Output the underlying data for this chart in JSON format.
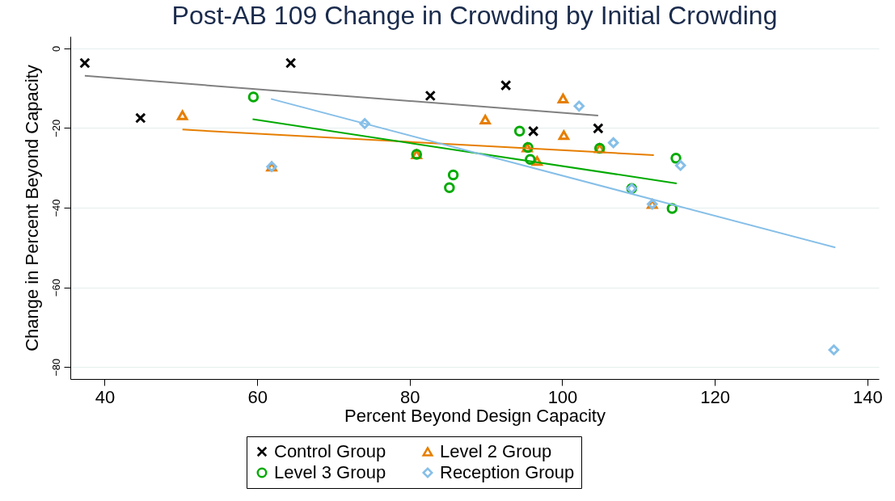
{
  "chart_data": {
    "type": "scatter",
    "title": "Post-AB 109 Change in Crowding by Initial Crowding",
    "xlabel": "Percent Beyond Design Capacity",
    "ylabel": "Change in Percent Beyond Capacity",
    "xlim": [
      35.5,
      141.5
    ],
    "xticks": [
      40,
      60,
      80,
      100,
      120,
      140
    ],
    "ylim": [
      -83,
      3
    ],
    "yticks": [
      0,
      -20,
      -40,
      -60,
      -80
    ],
    "grid": "y",
    "legend": "bottom",
    "series": [
      {
        "name": "Control Group",
        "type": "scatter",
        "marker": "cross",
        "color": "#000000",
        "x": [
          37.4,
          64.4,
          44.7,
          82.7,
          92.6,
          96.2,
          104.7
        ],
        "values": [
          -3.7,
          -3.7,
          -17.5,
          -11.9,
          -9.3,
          -20.8,
          -20.1
        ]
      },
      {
        "name": "Level 2 Group",
        "type": "scatter",
        "marker": "triangle",
        "color": "#e67e00",
        "x": [
          50.2,
          61.9,
          80.9,
          89.9,
          100.1,
          95.4,
          96.7,
          100.2,
          104.9,
          111.8
        ],
        "values": [
          -16.8,
          -29.7,
          -26.6,
          -17.9,
          -12.6,
          -24.9,
          -28.3,
          -21.8,
          -25.1,
          -39.1
        ]
      },
      {
        "name": "Level 3 Group",
        "type": "scatter",
        "marker": "circle",
        "color": "#00aa00",
        "x": [
          59.5,
          80.9,
          85.7,
          85.2,
          94.4,
          95.5,
          95.8,
          104.9,
          114.9,
          114.4,
          109.1
        ],
        "values": [
          -12.2,
          -26.6,
          -31.8,
          -35.0,
          -20.8,
          -24.9,
          -27.9,
          -25.1,
          -27.6,
          -40.2,
          -35.2
        ]
      },
      {
        "name": "Reception Group",
        "type": "scatter",
        "marker": "diamond",
        "color": "#86bfe8",
        "x": [
          61.9,
          74.1,
          102.2,
          106.7,
          115.5,
          109.1,
          111.8,
          135.6
        ],
        "values": [
          -29.7,
          -18.9,
          -14.5,
          -23.7,
          -29.4,
          -35.2,
          -39.1,
          -75.7
        ]
      },
      {
        "type": "line",
        "color": "#808080",
        "x": [
          37.4,
          104.7
        ],
        "values": [
          -6.9,
          -16.9
        ]
      },
      {
        "type": "line",
        "color": "#e67e00",
        "x": [
          50.2,
          112
        ],
        "values": [
          -20.4,
          -26.8
        ]
      },
      {
        "type": "line",
        "color": "#00aa00",
        "x": [
          59.4,
          115
        ],
        "values": [
          -17.8,
          -33.9
        ]
      },
      {
        "type": "line",
        "color": "#86bfe8",
        "x": [
          61.8,
          135.8
        ],
        "values": [
          -12.7,
          -50.0
        ]
      }
    ]
  }
}
